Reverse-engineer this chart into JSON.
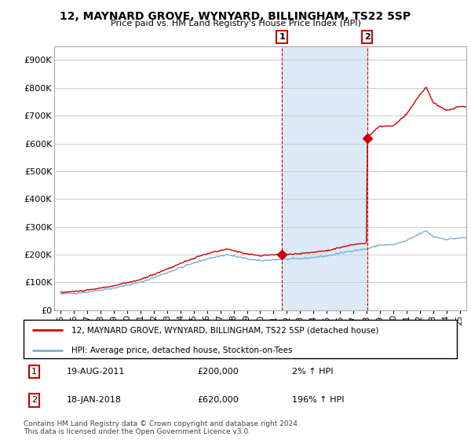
{
  "title": "12, MAYNARD GROVE, WYNYARD, BILLINGHAM, TS22 5SP",
  "subtitle": "Price paid vs. HM Land Registry's House Price Index (HPI)",
  "ylabel_ticks": [
    "£0",
    "£100K",
    "£200K",
    "£300K",
    "£400K",
    "£500K",
    "£600K",
    "£700K",
    "£800K",
    "£900K"
  ],
  "ytick_values": [
    0,
    100000,
    200000,
    300000,
    400000,
    500000,
    600000,
    700000,
    800000,
    900000
  ],
  "ylim": [
    0,
    950000
  ],
  "xlim_start": 1994.5,
  "xlim_end": 2025.5,
  "xtick_years": [
    1995,
    1996,
    1997,
    1998,
    1999,
    2000,
    2001,
    2002,
    2003,
    2004,
    2005,
    2006,
    2007,
    2008,
    2009,
    2010,
    2011,
    2012,
    2013,
    2014,
    2015,
    2016,
    2017,
    2018,
    2019,
    2020,
    2021,
    2022,
    2023,
    2024,
    2025
  ],
  "xtick_labels": [
    "95",
    "96",
    "97",
    "98",
    "99",
    "00",
    "01",
    "02",
    "03",
    "04",
    "05",
    "06",
    "07",
    "08",
    "09",
    "10",
    "11",
    "12",
    "13",
    "14",
    "15",
    "16",
    "17",
    "18",
    "19",
    "20",
    "21",
    "22",
    "23",
    "24",
    "25"
  ],
  "hpi_line_color": "#7bafd4",
  "price_line_color": "#cc0000",
  "sale1_x": 2011.63,
  "sale1_y": 200000,
  "sale2_x": 2018.05,
  "sale2_y": 620000,
  "vline_color": "#cc0000",
  "shade_color": "#dce9f7",
  "legend_label1": "12, MAYNARD GROVE, WYNYARD, BILLINGHAM, TS22 5SP (detached house)",
  "legend_label2": "HPI: Average price, detached house, Stockton-on-Tees",
  "table_row1": [
    "1",
    "19-AUG-2011",
    "£200,000",
    "2% ↑ HPI"
  ],
  "table_row2": [
    "2",
    "18-JAN-2018",
    "£620,000",
    "196% ↑ HPI"
  ],
  "footnote": "Contains HM Land Registry data © Crown copyright and database right 2024.\nThis data is licensed under the Open Government Licence v3.0.",
  "grid_color": "#cccccc"
}
